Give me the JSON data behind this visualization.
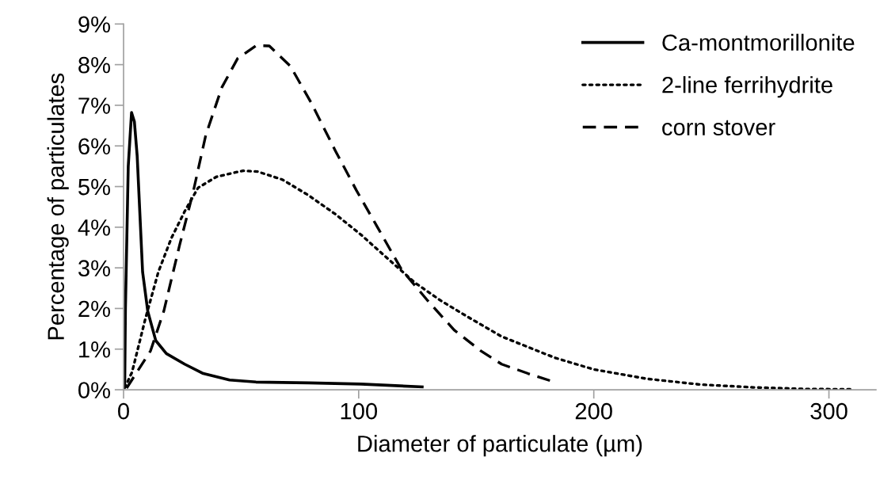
{
  "chart_data": {
    "type": "line",
    "xlabel": "Diameter of particulate (µm)",
    "ylabel": "Percentage of particulates",
    "xlim": [
      0,
      320
    ],
    "xticks": [
      0,
      100,
      200,
      300
    ],
    "ylim": [
      0,
      9
    ],
    "yticks": [
      {
        "value": 0,
        "label": "0%"
      },
      {
        "value": 1,
        "label": "1%"
      },
      {
        "value": 2,
        "label": "2%"
      },
      {
        "value": 3,
        "label": "3%"
      },
      {
        "value": 4,
        "label": "4%"
      },
      {
        "value": 5,
        "label": "5%"
      },
      {
        "value": 6,
        "label": "6%"
      },
      {
        "value": 7,
        "label": "7%"
      },
      {
        "value": 8,
        "label": "8%"
      },
      {
        "value": 9,
        "label": "9%"
      }
    ],
    "grid": false,
    "legend": "top right",
    "marker": "none",
    "series": [
      {
        "name": "Ca-montmorillonite",
        "color": "#000000",
        "line_style": "solid",
        "x": [
          0.5,
          0.8,
          2.0,
          3.4,
          4.6,
          5.8,
          8.1,
          10.3,
          13.7,
          18.2,
          26,
          33.9,
          45.1,
          56.3,
          78.8,
          101,
          127
        ],
        "values": [
          0.1,
          2.0,
          5.5,
          6.82,
          6.6,
          5.75,
          2.9,
          1.93,
          1.21,
          0.89,
          0.63,
          0.4,
          0.24,
          0.19,
          0.17,
          0.14,
          0.07
        ]
      },
      {
        "name": "2-line ferrihydrite",
        "color": "#000000",
        "line_style": "dotted",
        "x": [
          0.5,
          3.6,
          9.2,
          14.8,
          20.4,
          26,
          31.7,
          39.5,
          50.8,
          56.9,
          67.6,
          78.8,
          90.1,
          101.3,
          112.5,
          123.8,
          135,
          146.2,
          160.8,
          183.3,
          200,
          222.5,
          245,
          267.5,
          290,
          310
        ],
        "values": [
          0.05,
          0.43,
          1.73,
          2.9,
          3.74,
          4.39,
          4.97,
          5.24,
          5.39,
          5.37,
          5.17,
          4.78,
          4.32,
          3.8,
          3.22,
          2.64,
          2.19,
          1.8,
          1.31,
          0.79,
          0.5,
          0.27,
          0.13,
          0.06,
          0.02,
          0.01
        ]
      },
      {
        "name": "corn stover",
        "color": "#000000",
        "line_style": "dashed",
        "x": [
          1.3,
          11.5,
          17.1,
          23.8,
          29.5,
          35,
          41.8,
          48.5,
          56.4,
          62,
          71,
          80,
          90.1,
          99,
          108,
          118.2,
          129.4,
          140.6,
          151.9,
          160.8,
          172,
          182.2
        ],
        "values": [
          0.04,
          0.96,
          1.93,
          3.55,
          4.84,
          6.27,
          7.44,
          8.15,
          8.47,
          8.46,
          7.96,
          7.04,
          5.88,
          4.91,
          4.0,
          2.96,
          2.19,
          1.47,
          0.96,
          0.63,
          0.4,
          0.21
        ]
      }
    ]
  }
}
